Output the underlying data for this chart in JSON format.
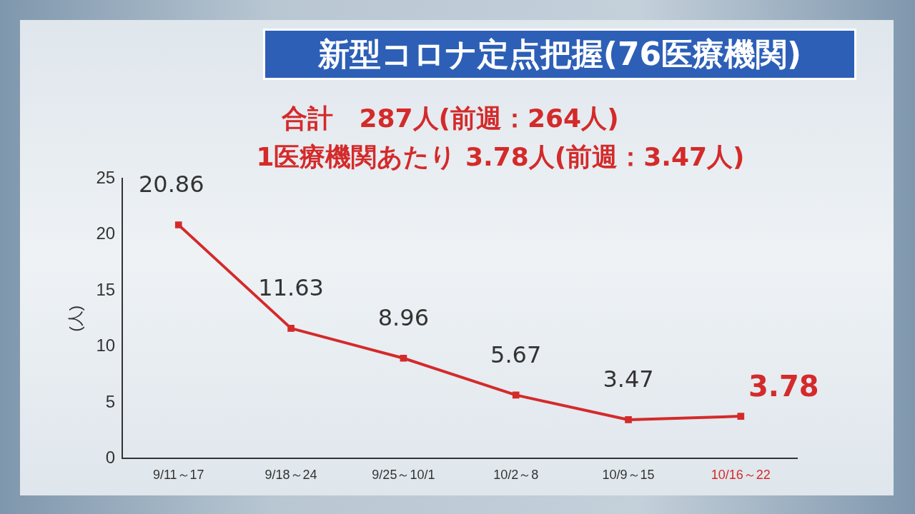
{
  "chart_data": {
    "type": "line",
    "title": "新型コロナ定点把握(76医療機関)",
    "subtitle": "合計　287人(前週：264人)",
    "annotations": [
      "1医療機関あたり 3.78人(前週：3.47人)"
    ],
    "ylabel": "(人)",
    "categories": [
      "9/11～17",
      "9/18～24",
      "9/25～10/1",
      "10/2～8",
      "10/9～15",
      "10/16～22"
    ],
    "series": [
      {
        "color": "#d42a2a",
        "values": [
          20.86,
          11.63,
          8.96,
          5.67,
          3.47,
          3.78
        ]
      }
    ],
    "ylim": [
      0,
      25
    ],
    "yticks": [
      0,
      5,
      10,
      15,
      20,
      25
    ],
    "grid": false,
    "legend": false,
    "marker": "square",
    "line_style": "solid",
    "data_labels": true
  }
}
